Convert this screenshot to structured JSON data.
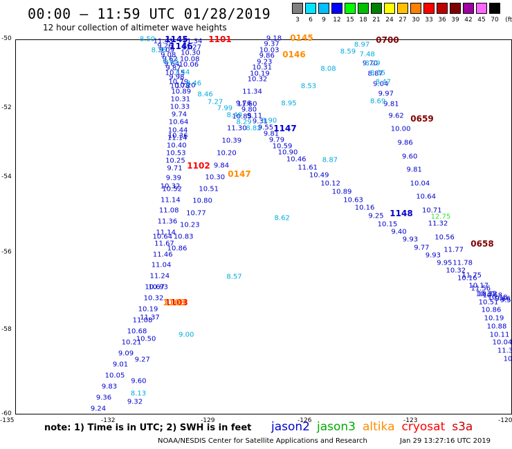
{
  "header": {
    "title": "00:00 – 11:59 UTC 01/28/2019",
    "subtitle": "12 hour collection of altimeter wave heights"
  },
  "color_scale": {
    "labels": [
      "3",
      "6",
      "9",
      "12",
      "15",
      "18",
      "21",
      "24",
      "27",
      "30",
      "33",
      "36",
      "39",
      "42",
      "45",
      "70",
      "(ft)"
    ],
    "colors": [
      "#808080",
      "#00e5ff",
      "#00bfff",
      "#0000ff",
      "#00ff00",
      "#00c000",
      "#008000",
      "#ffff00",
      "#ffc000",
      "#ff8000",
      "#ff0000",
      "#c00000",
      "#800000",
      "#a000a0",
      "#ff66ff",
      "#000000"
    ]
  },
  "axes": {
    "lat_labels": [
      "-50",
      "-52",
      "-54",
      "-56",
      "-58",
      "-60"
    ],
    "lon_labels": [
      "-135",
      "-132",
      "-129",
      "-126",
      "-123",
      "-120"
    ]
  },
  "tracks": {
    "jason2_a": {
      "color": "#0000cc",
      "values": [
        "11.43",
        "9.26",
        "9.09",
        "9.08",
        "9.62",
        "9.64",
        "9.87",
        "10.15",
        "9.98",
        "10.79",
        "10.78",
        "10.89",
        "10.31",
        "10.33",
        "9.74",
        "10.64",
        "10.44",
        "11.14",
        "10.40",
        "10.53",
        "10.25",
        "9.71",
        "9.39",
        "10.52",
        "11.14",
        "11.08",
        "11.36",
        "11.14",
        "11.67",
        "11.46",
        "11.04",
        "11.24",
        "10.93",
        "10.32",
        "10.19",
        "11.08",
        "10.68",
        "10.21",
        "9.09",
        "9.01",
        "10.05",
        "9.83",
        "9.36",
        "9.24"
      ]
    },
    "jason2_a_right": {
      "color": "#0000cc",
      "values": [
        "11.34",
        "11.27",
        "10.30",
        "10.08",
        "10.06",
        "10.20",
        "10.36",
        "10.32",
        "10.64",
        "10.67",
        "11.37",
        "10.50",
        "9.27",
        "9.60",
        "9.32"
      ]
    },
    "jason2_b": {
      "color": "#0000cc",
      "values": [
        "9.18",
        "9.37",
        "10.03",
        "9.86",
        "9.23",
        "10.31",
        "10.19",
        "10.32",
        "11.34",
        "11.60",
        "10.85",
        "11.30",
        "10.39",
        "10.20",
        "9.84",
        "10.30",
        "10.51",
        "10.80",
        "10.77",
        "10.23",
        "10.83",
        "10.86"
      ]
    },
    "jason2_c": {
      "color": "#0000cc",
      "values": [
        "9.76",
        "9.80",
        "9.11",
        "9.31",
        "9.55",
        "9.81",
        "9.79",
        "10.59",
        "10.90",
        "10.46",
        "11.61",
        "10.49",
        "10.12",
        "10.89",
        "10.63",
        "10.16",
        "9.25",
        "10.15",
        "9.40",
        "9.93",
        "9.77",
        "9.93",
        "9.95",
        "10.32",
        "10.16",
        "10.17",
        "10.31",
        "10.51",
        "10.86",
        "10.19",
        "10.88",
        "10.11",
        "10.04",
        "11.3",
        "10"
      ]
    },
    "jason2_d": {
      "color": "#0000cc",
      "values": [
        "9.70",
        "8.87",
        "9.04",
        "9.97",
        "9.81",
        "9.62",
        "10.00",
        "9.86",
        "9.60",
        "9.81",
        "10.04",
        "10.64",
        "10.71",
        "11.32",
        "10.56",
        "11.77",
        "11.78",
        "11.75",
        "11.56",
        "10.32",
        "10.58",
        "10.18",
        "9.66",
        "9.53"
      ]
    },
    "cyan_track": {
      "color": "#00aadd",
      "values": [
        "8.50",
        "8.26",
        "8.63",
        "7.44",
        "8.46",
        "8.46",
        "7.27",
        "7.99",
        "8.40",
        "8.29",
        "8.82",
        "8.90",
        "8.95",
        "8.53",
        "8.08",
        "8.59",
        "8.97",
        "7.48",
        "8.29",
        "8.55",
        "8.47",
        "8.69",
        "8.87",
        "8.62",
        "8.57",
        "9.00",
        "8.13"
      ]
    },
    "jason3": {
      "color": "#33dd33",
      "values": [
        "12.75"
      ]
    },
    "time_labels": [
      {
        "text": "1145",
        "color": "#0000cc"
      },
      {
        "text": "1146",
        "color": "#0000cc"
      },
      {
        "text": "1147",
        "color": "#0000cc"
      },
      {
        "text": "1148",
        "color": "#0000cc"
      },
      {
        "text": "1101",
        "color": "#ff0000"
      },
      {
        "text": "1102",
        "color": "#ff0000"
      },
      {
        "text": "1103",
        "color": "#ff0000"
      },
      {
        "text": "1103",
        "color": "#ff8c00"
      },
      {
        "text": "0145",
        "color": "#ff8c00"
      },
      {
        "text": "0146",
        "color": "#ff8c00"
      },
      {
        "text": "0147",
        "color": "#ff8c00"
      },
      {
        "text": "0700",
        "color": "#800000"
      },
      {
        "text": "0659",
        "color": "#800000"
      },
      {
        "text": "0658",
        "color": "#800000"
      }
    ]
  },
  "footer": {
    "note": "note:  1) Time is in UTC; 2) SWH is in feet",
    "legend": [
      {
        "label": "jason2",
        "color": "#0000cc"
      },
      {
        "label": "jason3",
        "color": "#00aa00"
      },
      {
        "label": "altika",
        "color": "#ff8c00"
      },
      {
        "label": "cryosat",
        "color": "#ff0000"
      },
      {
        "label": "s3a",
        "color": "#cc0000"
      }
    ],
    "credit": "NOAA/NESDIS Center for Satellite Applications and Research",
    "timestamp": "Jan 29 13:27:16 UTC 2019"
  }
}
